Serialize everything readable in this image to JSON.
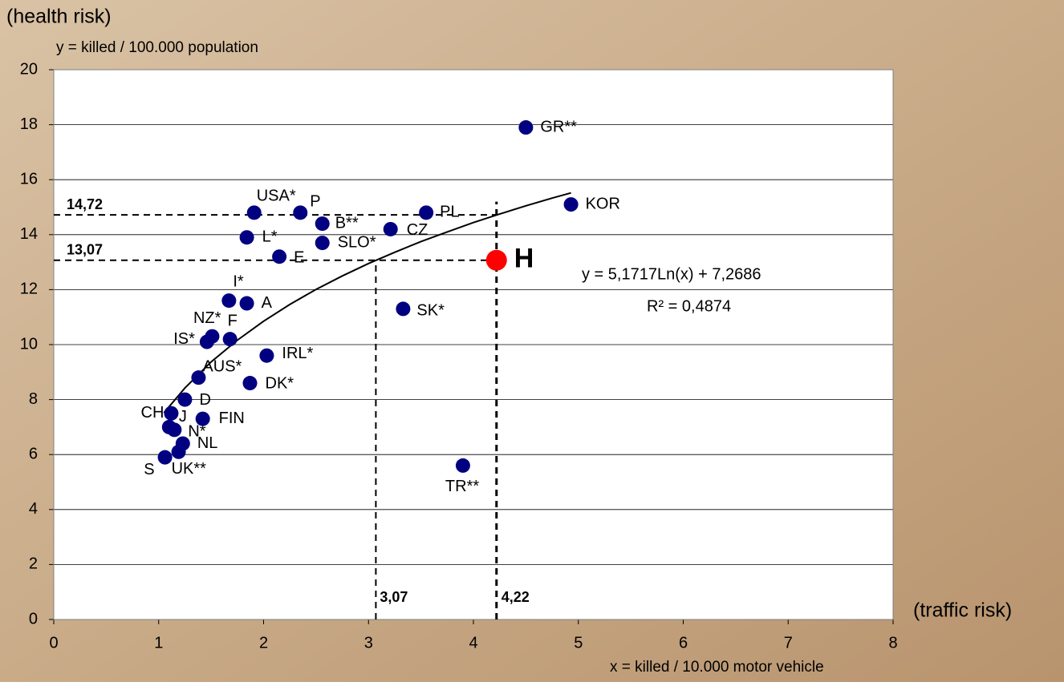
{
  "chart_data": {
    "type": "scatter",
    "title": "(health risk)",
    "ylabel": "y = killed / 100.000 population",
    "xtitle": "(traffic risk)",
    "xlabel": "x = killed / 10.000 motor vehicle",
    "xlim": [
      0,
      8
    ],
    "ylim": [
      0,
      20
    ],
    "xticks": [
      0,
      1,
      2,
      3,
      4,
      5,
      6,
      7,
      8
    ],
    "yticks": [
      0,
      2,
      4,
      6,
      8,
      10,
      12,
      14,
      16,
      18,
      20
    ],
    "grid": true,
    "series": [
      {
        "color": "#000080",
        "labels": [
          "GR**",
          "KOR",
          "PL",
          "USA*",
          "P",
          "B**",
          "CZ",
          "L*",
          "SLO*",
          "E",
          "I*",
          "A",
          "SK*",
          "NZ*",
          "IS*",
          "F",
          "IRL*",
          "AUS*",
          "DK*",
          "D",
          "CH",
          "FIN",
          "J",
          "N*",
          "NL",
          "UK**",
          "S",
          "TR**"
        ],
        "x": [
          4.5,
          4.93,
          3.55,
          1.91,
          2.35,
          2.56,
          3.21,
          1.84,
          2.56,
          2.15,
          1.67,
          1.84,
          3.33,
          1.51,
          1.46,
          1.68,
          2.03,
          1.38,
          1.87,
          1.25,
          1.12,
          1.42,
          1.1,
          1.15,
          1.23,
          1.19,
          1.06,
          3.9
        ],
        "values": [
          17.9,
          15.1,
          14.8,
          14.8,
          14.8,
          14.4,
          14.2,
          13.9,
          13.7,
          13.2,
          11.6,
          11.5,
          11.3,
          10.3,
          10.1,
          10.2,
          9.6,
          8.8,
          8.6,
          8.0,
          7.5,
          7.3,
          7.0,
          6.9,
          6.4,
          6.1,
          5.9,
          5.6
        ]
      },
      {
        "color": "#ff0000",
        "labels": [
          "H"
        ],
        "x": [
          4.22
        ],
        "values": [
          13.07
        ]
      }
    ],
    "trendline": {
      "color": "#000000",
      "x": [
        1.05,
        1.25,
        1.5,
        1.75,
        2,
        2.25,
        2.5,
        2.75,
        3,
        3.25,
        3.5,
        3.75,
        4,
        4.25,
        4.5,
        4.75,
        4.93
      ],
      "values": [
        7.52,
        8.42,
        9.37,
        10.16,
        10.85,
        11.46,
        12.01,
        12.5,
        12.95,
        13.36,
        13.75,
        14.1,
        14.44,
        14.75,
        15.05,
        15.33,
        15.52
      ]
    },
    "equation": "y = 5,1717Ln(x) + 7,2686",
    "r_squared": "R² = 0,4874",
    "ref_lines": [
      {
        "axis": "y",
        "value": 14.72,
        "label": "14,72",
        "to": 4.22
      },
      {
        "axis": "y",
        "value": 13.07,
        "label": "13,07",
        "to": 4.22
      },
      {
        "axis": "x",
        "value": 3.07,
        "label": "3,07",
        "to": 13.07
      },
      {
        "axis": "x",
        "value": 4.22,
        "label": "4,22",
        "to": 15.2
      }
    ]
  }
}
